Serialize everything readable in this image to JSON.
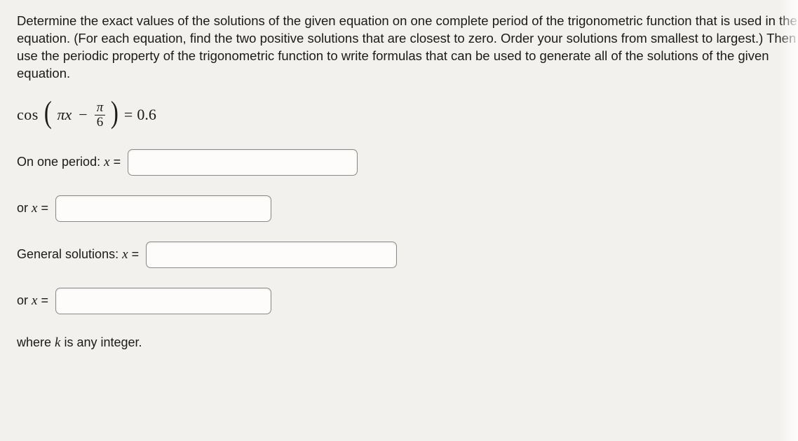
{
  "instructions": "Determine the exact values of the solutions of the given equation on one complete period of the trigonometric function that is used in the equation. (For each equation, find the two positive solutions that are closest to zero. Order your solutions from smallest to largest.) Then use the periodic property of the trigonometric function to write formulas that can be used to generate all of the solutions of the given equation.",
  "equation": {
    "func": "cos",
    "arg_left": "πx",
    "minus": "−",
    "frac_num": "π",
    "frac_den": "6",
    "eq": "=",
    "rhs": "0.6"
  },
  "rows": {
    "period_label": "On one period:",
    "or_label": "or",
    "general_label": "General solutions:",
    "x_eq": "x =",
    "x_eq_math_var": "x",
    "x_eq_math_eq": "="
  },
  "footnote": {
    "prefix": "where ",
    "var": "k",
    "suffix": " is any integer."
  }
}
